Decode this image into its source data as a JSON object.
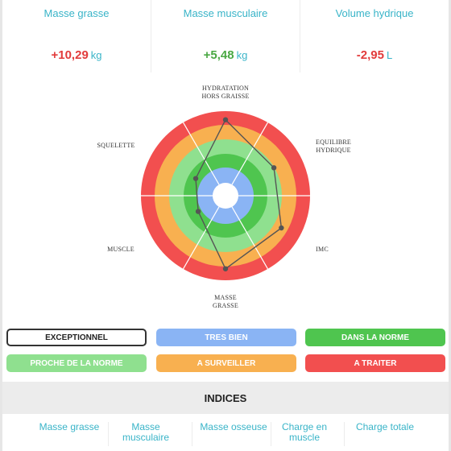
{
  "stats": [
    {
      "label": "Masse grasse",
      "value": "+10,29",
      "unit": "kg"
    },
    {
      "label": "Masse musculaire",
      "value": "+5,48",
      "unit": "kg"
    },
    {
      "label": "Volume hydrique",
      "value": "-2,95",
      "unit": "L"
    }
  ],
  "radar": {
    "axes": [
      {
        "id": "hydratation",
        "label_lines": [
          "HYDRATATION",
          "HORS GRAISSE"
        ]
      },
      {
        "id": "equilibre",
        "label_lines": [
          "EQUILIBRE",
          "HYDRIQUE"
        ]
      },
      {
        "id": "imc",
        "label_lines": [
          "IMC"
        ]
      },
      {
        "id": "masse-grasse",
        "label_lines": [
          "MASSE",
          "GRASSE"
        ]
      },
      {
        "id": "muscle",
        "label_lines": [
          "MUSCLE"
        ]
      },
      {
        "id": "squelette",
        "label_lines": [
          "SQUELETTE"
        ]
      }
    ],
    "zone_colors": [
      "#8ab4f4",
      "#4fc54f",
      "#8fe08f",
      "#f8b050",
      "#f24f4f"
    ],
    "scores": [
      4.4,
      3.0,
      3.6,
      4.2,
      1.3,
      1.5
    ],
    "max_score": 5
  },
  "legend": {
    "exceptionnel": "EXCEPTIONNEL",
    "tres_bien": "TRES BIEN",
    "dans_la_norme": "DANS LA NORME",
    "proche_de_la_norme": "PROCHE DE LA NORME",
    "a_surveiller": "A SURVEILLER",
    "a_traiter": "A TRAITER"
  },
  "indices": {
    "title": "INDICES",
    "items": [
      {
        "lines": [
          "Masse grasse"
        ]
      },
      {
        "lines": [
          "Masse",
          "musculaire"
        ]
      },
      {
        "lines": [
          "Masse osseuse"
        ]
      },
      {
        "lines": [
          "Charge en",
          "muscle"
        ]
      },
      {
        "lines": [
          "Charge totale"
        ]
      }
    ]
  }
}
